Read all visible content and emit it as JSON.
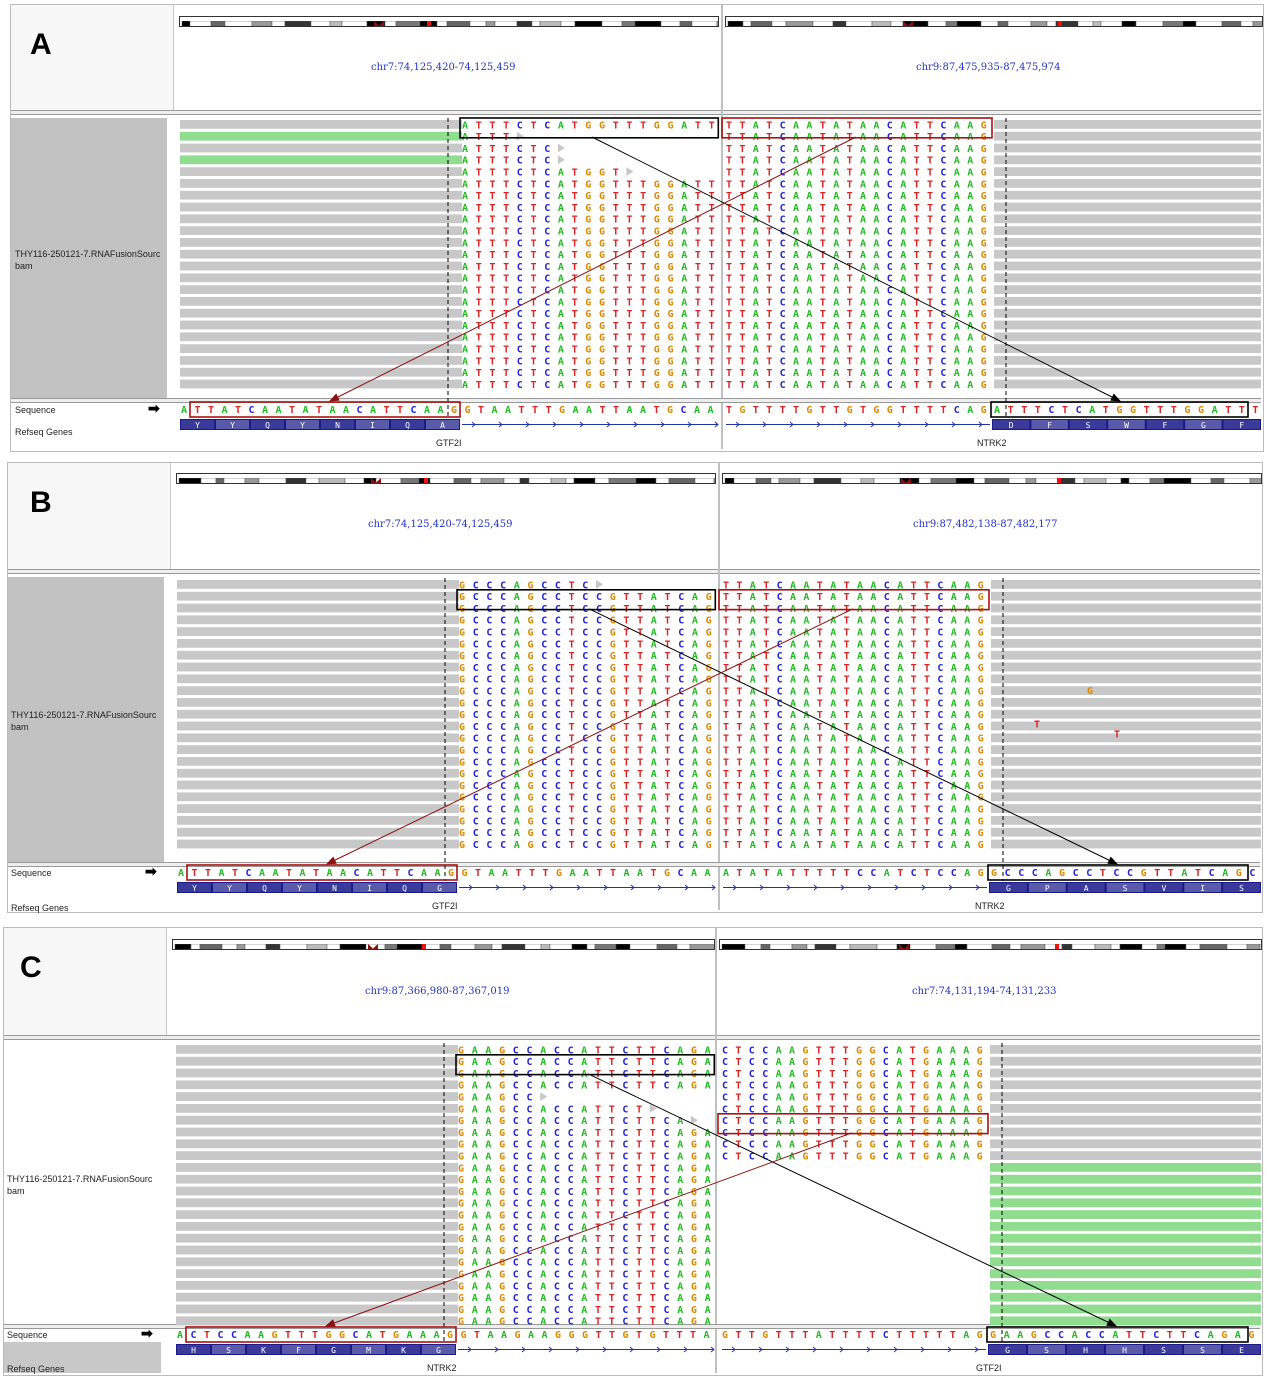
{
  "track_name_line1": "THY116-250121-7.RNAFusionSourc",
  "track_name_line2": "bam",
  "sequence_label": "Sequence",
  "refseq_label": "Refseq Genes",
  "colors": {
    "A": "#22bb22",
    "C": "#2222dd",
    "G": "#dd8800",
    "T": "#dd2222",
    "read": "#c8c8c8",
    "softclip": "#90dd90",
    "box_black": "#000000",
    "box_red": "#aa1111"
  },
  "panels": [
    {
      "letter": "A",
      "left_locus": "chr7:74,125,420-74,125,459",
      "right_locus": "chr9:87,475,935-87,475,974",
      "left_gene": "GTF2I",
      "right_gene": "NTRK2",
      "read_left": "ATTTCTCATGGTTTGGATT",
      "read_right": "TTATCAATATAACATTCAAG",
      "ref_a": "ATTATCAATATAACATTCAAG",
      "ref_b": "GTAATTTGAATTAATGCAA",
      "ref_c": "TGTTTTGTTGTGGTTTTCAG",
      "ref_d": "ATTTCTCATGGTTTGGATTT",
      "aa_left": [
        "Y",
        "Y",
        "Q",
        "Y",
        "N",
        "I",
        "Q",
        "A"
      ],
      "aa_right": [
        "D",
        "F",
        "S",
        "W",
        "F",
        "G",
        "F"
      ],
      "read_rows": [
        {
          "l": 19,
          "r": 20
        },
        {
          "l": 4,
          "r": 20,
          "sc": 1
        },
        {
          "l": 7,
          "r": 20
        },
        {
          "l": 7,
          "r": 20,
          "sc": 1
        },
        {
          "l": 12,
          "r": 20
        },
        {
          "l": 19,
          "r": 20
        },
        {
          "l": 19,
          "r": 20
        },
        {
          "l": 19,
          "r": 20
        },
        {
          "l": 19,
          "r": 20
        },
        {
          "l": 19,
          "r": 20
        },
        {
          "l": 19,
          "r": 20
        },
        {
          "l": 19,
          "r": 20
        },
        {
          "l": 19,
          "r": 20
        },
        {
          "l": 19,
          "r": 20
        },
        {
          "l": 19,
          "r": 20
        },
        {
          "l": 19,
          "r": 20
        },
        {
          "l": 19,
          "r": 20
        },
        {
          "l": 19,
          "r": 20
        },
        {
          "l": 19,
          "r": 20
        },
        {
          "l": 19,
          "r": 20
        },
        {
          "l": 19,
          "r": 20
        },
        {
          "l": 19,
          "r": 20
        },
        {
          "l": 19,
          "r": 20
        }
      ]
    },
    {
      "letter": "B",
      "left_locus": "chr7:74,125,420-74,125,459",
      "right_locus": "chr9:87,482,138-87,482,177",
      "left_gene": "GTF2I",
      "right_gene": "NTRK2",
      "read_left": "GCCCAGCCTCCGTTATCAG",
      "read_right": "TTATCAATATAACATTCAAG",
      "ref_a": "ATTATCAATATAACATTCAAG",
      "ref_b": "GTAATTTGAATTAATGCAA",
      "ref_c": "ATATATTTTTCCATCTCCAG",
      "ref_d": "GCCCAGCCTCCGTTATCAGC",
      "aa_left": [
        "Y",
        "Y",
        "Q",
        "Y",
        "N",
        "I",
        "Q",
        "G"
      ],
      "aa_right": [
        "G",
        "P",
        "A",
        "S",
        "V",
        "I",
        "S"
      ],
      "mismatches": [
        "G",
        "T",
        "T"
      ],
      "read_rows": [
        {
          "l": 10,
          "r": 20
        },
        {
          "l": 19,
          "r": 20
        },
        {
          "l": 19,
          "r": 20
        },
        {
          "l": 19,
          "r": 20
        },
        {
          "l": 19,
          "r": 20
        },
        {
          "l": 19,
          "r": 20
        },
        {
          "l": 19,
          "r": 20
        },
        {
          "l": 19,
          "r": 20
        },
        {
          "l": 19,
          "r": 20
        },
        {
          "l": 19,
          "r": 20
        },
        {
          "l": 19,
          "r": 20
        },
        {
          "l": 19,
          "r": 20
        },
        {
          "l": 19,
          "r": 20
        },
        {
          "l": 19,
          "r": 20
        },
        {
          "l": 19,
          "r": 20
        },
        {
          "l": 19,
          "r": 20
        },
        {
          "l": 19,
          "r": 20
        },
        {
          "l": 19,
          "r": 20
        },
        {
          "l": 19,
          "r": 20
        },
        {
          "l": 19,
          "r": 20
        },
        {
          "l": 19,
          "r": 20
        },
        {
          "l": 19,
          "r": 20
        },
        {
          "l": 19,
          "r": 20
        }
      ]
    },
    {
      "letter": "C",
      "left_locus": "chr9:87,366,980-87,367,019",
      "right_locus": "chr7:74,131,194-74,131,233",
      "left_gene": "NTRK2",
      "right_gene": "GTF2I",
      "read_left": "GAAGCCACCATTCTTCAGA",
      "read_right": "CTCCAAGTTTGGCATGAAAG",
      "ref_a": "ACTCCAAGTTTGGCATGAAAG",
      "ref_b": "GTAAGAAGGGTTGTGTTTA",
      "ref_c": "GTTGTTTATTTTCTTTTTAG",
      "ref_d": "GAAGCCACCATTCTTCAGAG",
      "aa_left": [
        "H",
        "S",
        "K",
        "F",
        "G",
        "M",
        "K",
        "G"
      ],
      "aa_right": [
        "G",
        "S",
        "H",
        "H",
        "S",
        "S",
        "E"
      ],
      "read_rows": [
        {
          "l": 19,
          "r": 20
        },
        {
          "l": 19,
          "r": 20
        },
        {
          "l": 19,
          "r": 20
        },
        {
          "l": 19,
          "r": 20
        },
        {
          "l": 6,
          "r": 20
        },
        {
          "l": 14,
          "r": 20
        },
        {
          "l": 17,
          "r": 20
        },
        {
          "l": 19,
          "r": 20
        },
        {
          "l": 19,
          "r": 20
        },
        {
          "l": 19,
          "r": 20
        },
        {
          "l": 19,
          "r": 0
        },
        {
          "l": 19,
          "r": 0
        },
        {
          "l": 19,
          "r": 0
        },
        {
          "l": 19,
          "r": 0
        },
        {
          "l": 19,
          "r": 0
        },
        {
          "l": 19,
          "r": 0
        },
        {
          "l": 19,
          "r": 0
        },
        {
          "l": 19,
          "r": 0
        },
        {
          "l": 19,
          "r": 0
        },
        {
          "l": 19,
          "r": 0
        },
        {
          "l": 19,
          "r": 0
        },
        {
          "l": 19,
          "r": 0
        },
        {
          "l": 19,
          "r": 0
        },
        {
          "l": 19,
          "r": 0
        }
      ]
    }
  ]
}
